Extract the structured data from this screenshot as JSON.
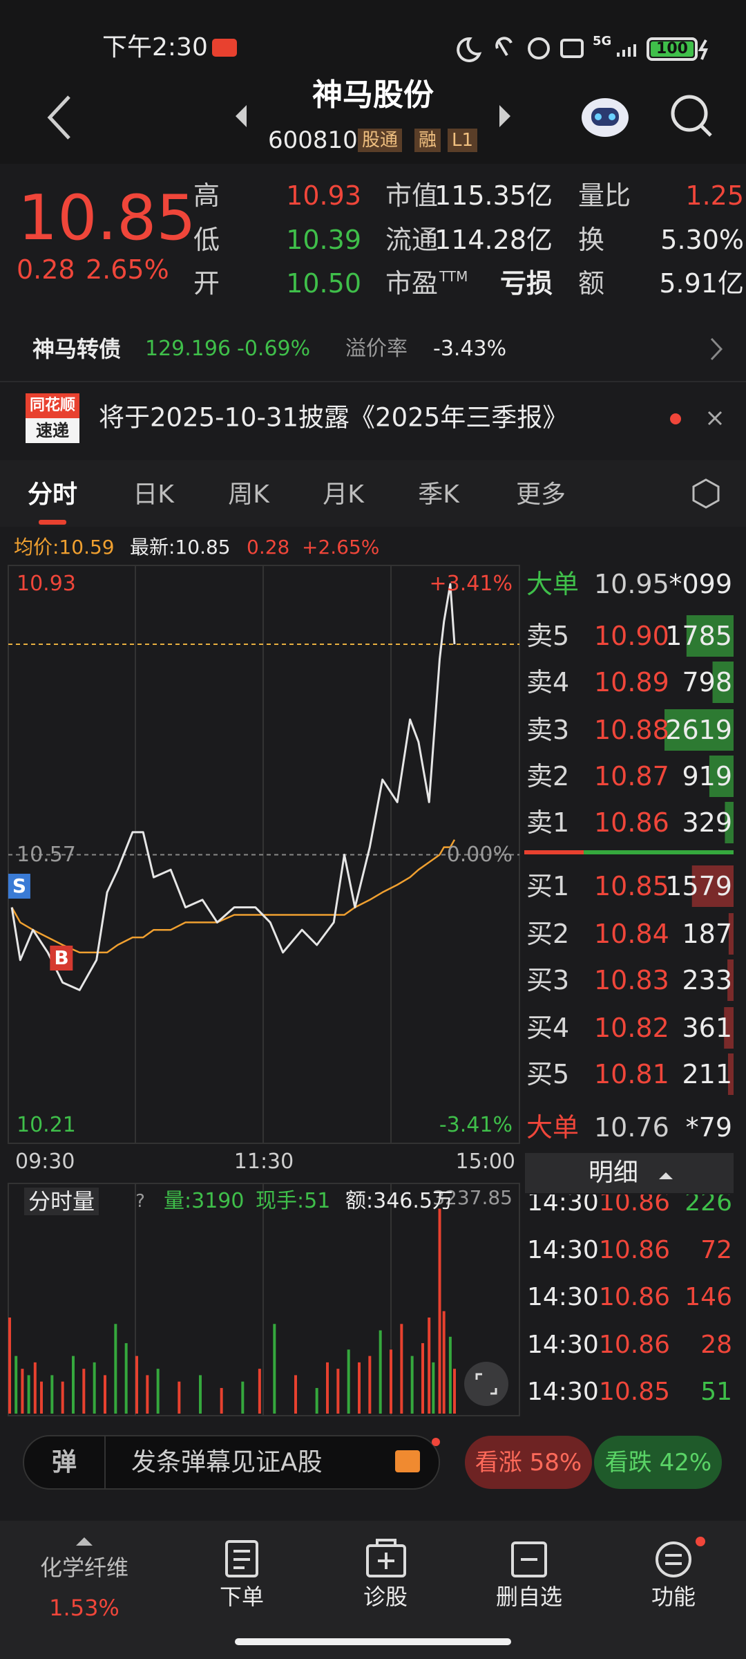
{
  "status_bar": {
    "time": "下午2:30",
    "network": "5G",
    "battery": "100"
  },
  "header": {
    "title": "神马股份",
    "code": "600810",
    "tags": [
      "股通",
      "融",
      "L1"
    ]
  },
  "quote": {
    "price": "10.85",
    "change": "0.28",
    "change_pct": "2.65%",
    "stats": [
      {
        "label": "高",
        "value": "10.93",
        "color": "#f0463a"
      },
      {
        "label": "低",
        "value": "10.39",
        "color": "#3fbf4a"
      },
      {
        "label": "开",
        "value": "10.50",
        "color": "#3fbf4a"
      },
      {
        "label": "市值",
        "value": "115.35亿",
        "color": "#ececec"
      },
      {
        "label": "流通",
        "value": "114.28亿",
        "color": "#ececec"
      },
      {
        "label": "市盈",
        "sup": "TTM",
        "value": "亏损",
        "color": "#ececec"
      },
      {
        "label": "量比",
        "value": "1.25",
        "color": "#f0463a"
      },
      {
        "label": "换",
        "value": "5.30%",
        "color": "#ececec"
      },
      {
        "label": "额",
        "value": "5.91亿",
        "color": "#ececec"
      }
    ]
  },
  "bond": {
    "name": "神马转债",
    "price": "129.196",
    "change_pct": "-0.69%",
    "premium_label": "溢价率",
    "premium": "-3.43%"
  },
  "notice": {
    "logo_top": "同花顺",
    "logo_bottom": "速递",
    "text": "将于2025-10-31披露《2025年三季报》"
  },
  "tabs": [
    "分时",
    "日K",
    "周K",
    "月K",
    "季K",
    "更多"
  ],
  "chart_info": {
    "avg": "均价:10.59",
    "latest": "最新:10.85",
    "change": "0.28",
    "change_pct": "+2.65%"
  },
  "chart_data": [
    {
      "type": "line",
      "x": [
        1,
        5,
        11,
        18,
        25,
        33,
        41,
        46,
        51,
        58,
        63,
        68,
        76,
        83,
        91,
        98,
        106,
        116,
        123,
        129,
        138,
        145,
        153,
        158,
        163,
        170,
        176,
        183,
        189,
        193,
        198,
        203,
        205,
        208,
        210
      ],
      "series": [
        {
          "color": "#e6e6e6",
          "values": [
            10.5,
            10.43,
            10.47,
            10.44,
            10.4,
            10.39,
            10.43,
            10.52,
            10.55,
            10.6,
            10.6,
            10.54,
            10.55,
            10.5,
            10.51,
            10.48,
            10.5,
            10.5,
            10.48,
            10.44,
            10.47,
            10.45,
            10.48,
            10.57,
            10.5,
            10.58,
            10.67,
            10.64,
            10.75,
            10.72,
            10.64,
            10.83,
            10.88,
            10.93,
            10.85
          ]
        },
        {
          "color": "#f0a030",
          "values": [
            10.5,
            10.48,
            10.47,
            10.46,
            10.45,
            10.44,
            10.44,
            10.44,
            10.45,
            10.46,
            10.46,
            10.47,
            10.47,
            10.48,
            10.48,
            10.48,
            10.49,
            10.49,
            10.49,
            10.49,
            10.49,
            10.49,
            10.49,
            10.49,
            10.5,
            10.51,
            10.52,
            10.53,
            10.54,
            10.55,
            10.56,
            10.57,
            10.58,
            10.58,
            10.59
          ]
        }
      ],
      "xlim": [
        0,
        240
      ],
      "xticks": [
        {
          "value": 0,
          "label": "09:30"
        },
        {
          "value": 120,
          "label": "11:30"
        },
        {
          "value": 240,
          "label": "15:00"
        }
      ],
      "ylim": [
        10.21,
        10.93
      ],
      "yticks": [
        10.93,
        10.57,
        10.21
      ],
      "y2lim": [
        -3.41,
        3.41
      ],
      "y2ticks": [
        {
          "value": 3.41,
          "label": "+3.41%"
        },
        {
          "value": 0,
          "label": "0.00%"
        },
        {
          "value": -3.41,
          "label": "-3.41%"
        }
      ],
      "annotations": [
        "S",
        "B"
      ]
    },
    {
      "type": "bar",
      "x": [
        0,
        3,
        6,
        9,
        12,
        15,
        20,
        25,
        30,
        35,
        40,
        45,
        50,
        55,
        60,
        65,
        70,
        80,
        90,
        100,
        110,
        118,
        125,
        135,
        145,
        150,
        155,
        160,
        165,
        170,
        175,
        180,
        185,
        190,
        195,
        198,
        200,
        203,
        205,
        208,
        210
      ],
      "values": [
        1500,
        900,
        700,
        600,
        800,
        500,
        600,
        500,
        900,
        700,
        800,
        600,
        1400,
        1100,
        900,
        600,
        700,
        500,
        600,
        400,
        500,
        700,
        1400,
        600,
        400,
        800,
        700,
        1000,
        800,
        900,
        1300,
        1000,
        1400,
        900,
        1100,
        1500,
        800,
        3200,
        1600,
        1200,
        700
      ],
      "colors": [
        "#e8412f",
        "#35a83d",
        "#e8412f",
        "#35a83d",
        "#e8412f",
        "#e8412f",
        "#35a83d",
        "#e8412f",
        "#35a83d",
        "#e8412f",
        "#35a83d",
        "#e8412f",
        "#35a83d",
        "#35a83d",
        "#e8412f",
        "#e8412f",
        "#35a83d",
        "#e8412f",
        "#35a83d",
        "#e8412f",
        "#35a83d",
        "#e8412f",
        "#35a83d",
        "#e8412f",
        "#35a83d",
        "#e8412f",
        "#e8412f",
        "#35a83d",
        "#e8412f",
        "#e8412f",
        "#35a83d",
        "#e8412f",
        "#e8412f",
        "#35a83d",
        "#e8412f",
        "#e8412f",
        "#35a83d",
        "#e8412f",
        "#e8412f",
        "#35a83d",
        "#e8412f"
      ],
      "xlim": [
        0,
        240
      ],
      "ylim": [
        0,
        3237.85
      ],
      "yticks": [
        3237.85
      ]
    }
  ],
  "volume_info": {
    "title": "分时量",
    "help": "?",
    "volume": "量:3190",
    "last_hand": "现手:51",
    "amount": "额:346.5万"
  },
  "order_book": {
    "big_sell": {
      "label": "大单",
      "price": "10.95",
      "vol": "*099"
    },
    "asks": [
      {
        "label": "卖5",
        "price": "10.90",
        "vol": 1785
      },
      {
        "label": "卖4",
        "price": "10.89",
        "vol": 798
      },
      {
        "label": "卖3",
        "price": "10.88",
        "vol": 2619
      },
      {
        "label": "卖2",
        "price": "10.87",
        "vol": 919
      },
      {
        "label": "卖1",
        "price": "10.86",
        "vol": 329
      }
    ],
    "bids": [
      {
        "label": "买1",
        "price": "10.85",
        "vol": 1579
      },
      {
        "label": "买2",
        "price": "10.84",
        "vol": 187
      },
      {
        "label": "买3",
        "price": "10.83",
        "vol": 233
      },
      {
        "label": "买4",
        "price": "10.82",
        "vol": 361
      },
      {
        "label": "买5",
        "price": "10.81",
        "vol": 211
      }
    ],
    "big_buy": {
      "label": "大单",
      "price": "10.76",
      "vol": "*79"
    }
  },
  "trades": {
    "title": "明细",
    "rows": [
      {
        "time": "14:30",
        "price": "10.86",
        "vol": "226",
        "color": "#3fbf4a"
      },
      {
        "time": "14:30",
        "price": "10.86",
        "vol": "72",
        "color": "#f0463a"
      },
      {
        "time": "14:30",
        "price": "10.86",
        "vol": "146",
        "color": "#f0463a"
      },
      {
        "time": "14:30",
        "price": "10.86",
        "vol": "28",
        "color": "#f0463a"
      },
      {
        "time": "14:30",
        "price": "10.85",
        "vol": "51",
        "color": "#3fbf4a"
      }
    ]
  },
  "barrage": {
    "icon": "弹",
    "placeholder": "发条弹幕见证A股",
    "bull": "看涨 58%",
    "bear": "看跌 42%"
  },
  "nav": {
    "sector": "化学纤维",
    "sector_pct": "1.53%",
    "items": [
      "下单",
      "诊股",
      "删自选",
      "功能"
    ]
  }
}
